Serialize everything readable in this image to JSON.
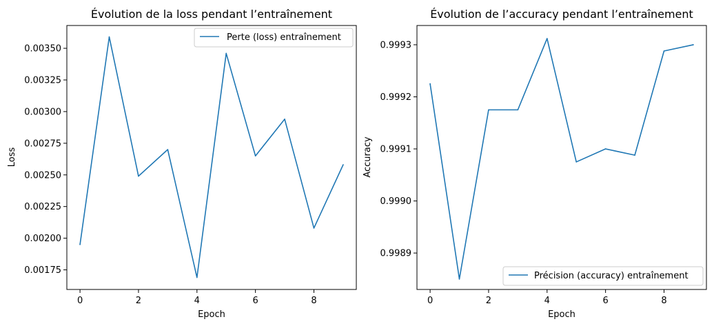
{
  "chart_data": [
    {
      "type": "line",
      "title": "Évolution de la loss pendant l’entraînement",
      "xlabel": "Epoch",
      "ylabel": "Loss",
      "x": [
        0,
        1,
        2,
        3,
        4,
        5,
        6,
        7,
        8,
        9
      ],
      "xlim": [
        -0.45,
        9.45
      ],
      "ylim": [
        0.001595,
        0.00368
      ],
      "xticks": [
        0,
        2,
        4,
        6,
        8
      ],
      "xtick_labels": [
        "0",
        "2",
        "4",
        "6",
        "8"
      ],
      "yticks": [
        0.00175,
        0.002,
        0.00225,
        0.0025,
        0.00275,
        0.003,
        0.00325,
        0.0035
      ],
      "ytick_labels": [
        "0.00175",
        "0.00200",
        "0.00225",
        "0.00250",
        "0.00275",
        "0.00300",
        "0.00325",
        "0.00350"
      ],
      "grid": false,
      "legend_position": "upper right",
      "series": [
        {
          "name": "Perte (loss) entraînement",
          "color": "#1f77b4",
          "values": [
            0.00195,
            0.00359,
            0.00249,
            0.0027,
            0.00169,
            0.00346,
            0.00265,
            0.00294,
            0.00208,
            0.00258
          ]
        }
      ]
    },
    {
      "type": "line",
      "title": "Évolution de l’accuracy pendant l’entraînement",
      "xlabel": "Epoch",
      "ylabel": "Accuracy",
      "x": [
        0,
        1,
        2,
        3,
        4,
        5,
        6,
        7,
        8,
        9
      ],
      "xlim": [
        -0.45,
        9.45
      ],
      "ylim": [
        0.99883,
        0.999337
      ],
      "xticks": [
        0,
        2,
        4,
        6,
        8
      ],
      "xtick_labels": [
        "0",
        "2",
        "4",
        "6",
        "8"
      ],
      "yticks": [
        0.9989,
        0.999,
        0.9991,
        0.9992,
        0.9993
      ],
      "ytick_labels": [
        "0.9989",
        "0.9990",
        "0.9991",
        "0.9992",
        "0.9993"
      ],
      "grid": false,
      "legend_position": "lower right",
      "series": [
        {
          "name": "Précision (accuracy) entraînement",
          "color": "#1f77b4",
          "values": [
            0.999225,
            0.99885,
            0.999175,
            0.999175,
            0.999312,
            0.999075,
            0.9991,
            0.999088,
            0.999288,
            0.9993
          ]
        }
      ]
    }
  ]
}
